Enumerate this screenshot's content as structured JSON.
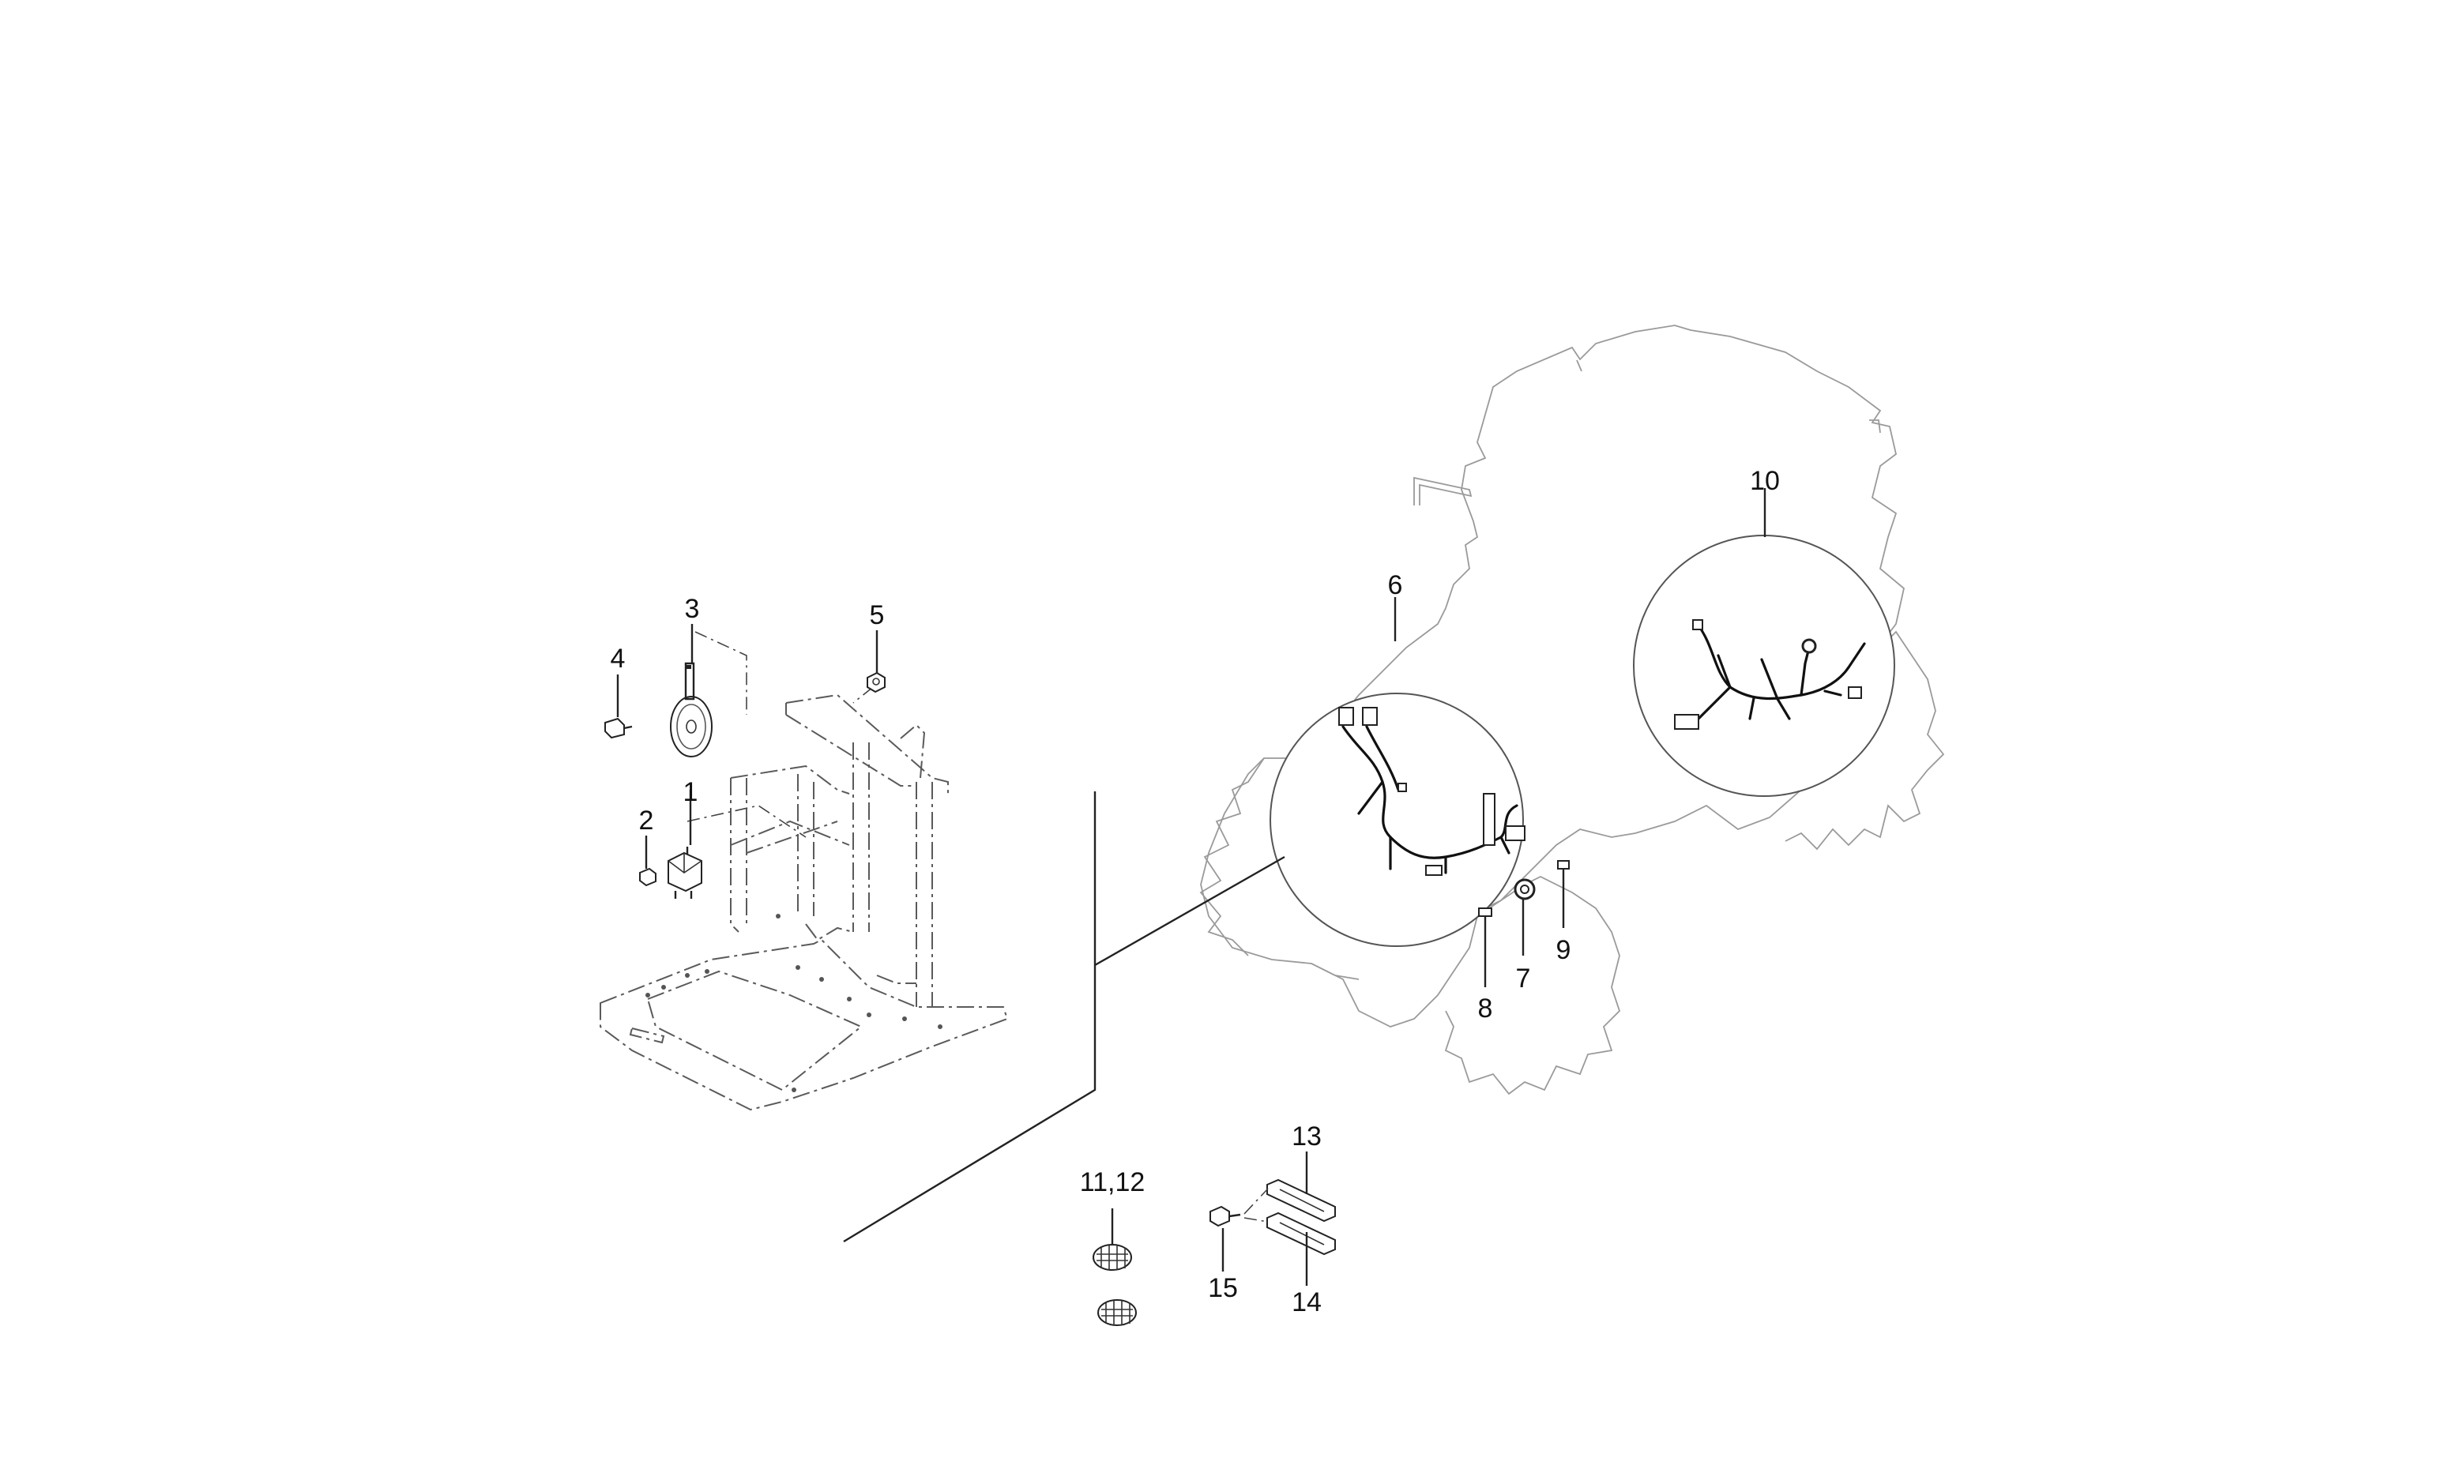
{
  "callouts": [
    {
      "id": "1",
      "label": "1"
    },
    {
      "id": "2",
      "label": "2"
    },
    {
      "id": "3",
      "label": "3"
    },
    {
      "id": "4",
      "label": "4"
    },
    {
      "id": "5",
      "label": "5"
    },
    {
      "id": "6",
      "label": "6"
    },
    {
      "id": "7",
      "label": "7"
    },
    {
      "id": "8",
      "label": "8"
    },
    {
      "id": "9",
      "label": "9"
    },
    {
      "id": "10",
      "label": "10"
    },
    {
      "id": "11_12",
      "label": "11,12"
    },
    {
      "id": "13",
      "label": "13"
    },
    {
      "id": "14",
      "label": "14"
    },
    {
      "id": "15",
      "label": "15"
    }
  ]
}
